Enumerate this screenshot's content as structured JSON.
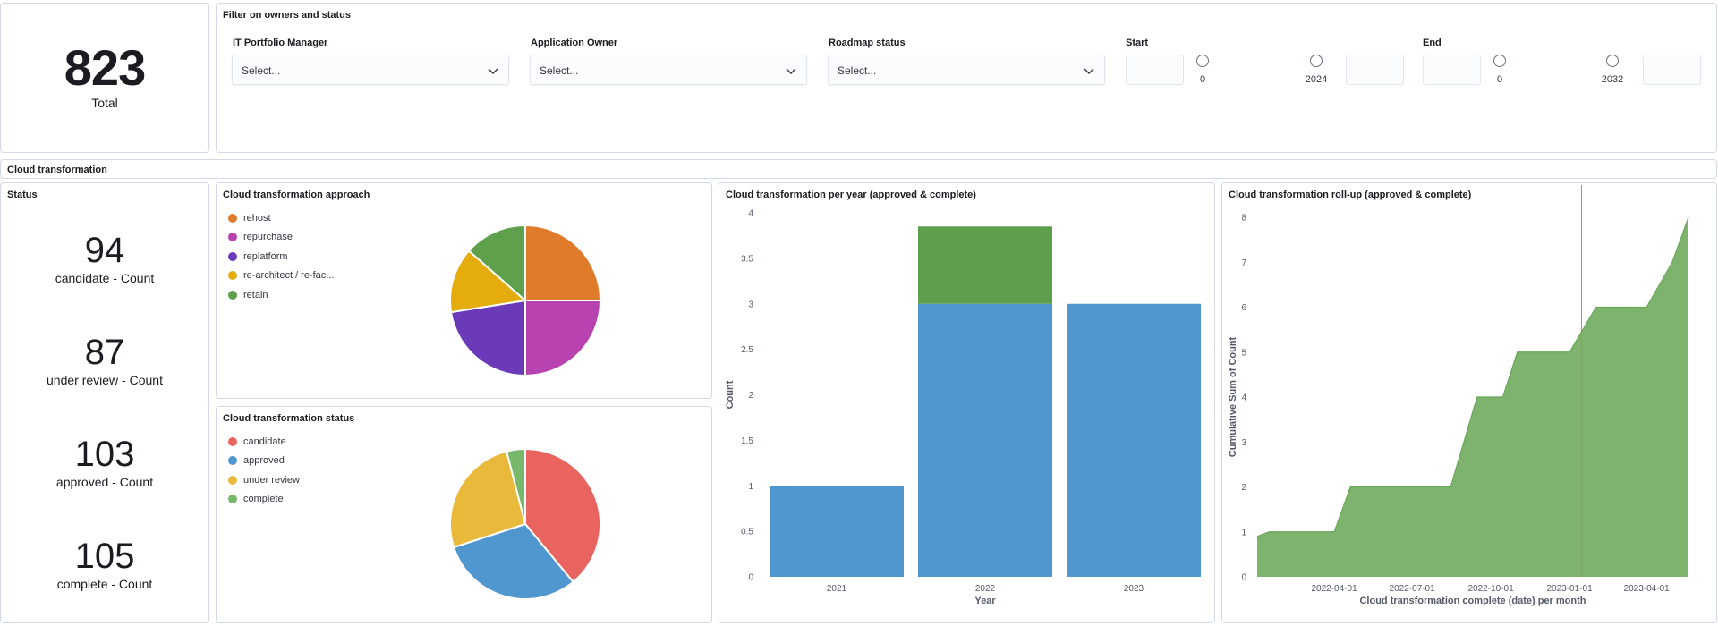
{
  "total": {
    "value": "823",
    "label": "Total"
  },
  "filters": {
    "title": "Filter on owners and status",
    "it_manager": {
      "label": "IT Portfolio Manager",
      "value": "Select..."
    },
    "app_owner": {
      "label": "Application Owner",
      "value": "Select..."
    },
    "roadmap": {
      "label": "Roadmap status",
      "value": "Select..."
    },
    "start": {
      "label": "Start",
      "min": "0",
      "max": "2024"
    },
    "end": {
      "label": "End",
      "min": "0",
      "max": "2032"
    }
  },
  "section": {
    "title": "Cloud transformation"
  },
  "status": {
    "title": "Status",
    "metrics": [
      {
        "value": "94",
        "label": "candidate - Count"
      },
      {
        "value": "87",
        "label": "under review - Count"
      },
      {
        "value": "103",
        "label": "approved - Count"
      },
      {
        "value": "105",
        "label": "complete - Count"
      }
    ]
  },
  "colors": {
    "rehost": "#e07b2c",
    "repurchase": "#b843b0",
    "replatform": "#6a3ab8",
    "rearchitect": "#e5ac0e",
    "retain": "#5ea04b",
    "candidate": "#e9645f",
    "approved": "#5097d0",
    "under_review": "#e8b93a",
    "complete": "#77b86a",
    "bar_blue": "#5097d0",
    "bar_green": "#5e9f4d",
    "area_green": "#7db36c",
    "marker": "#e07b5a"
  },
  "approach": {
    "title": "Cloud transformation approach",
    "legend": [
      {
        "label": "rehost",
        "color": "#e07b2c"
      },
      {
        "label": "repurchase",
        "color": "#b843b0"
      },
      {
        "label": "replatform",
        "color": "#6a3ab8"
      },
      {
        "label": "re-architect / re-fac...",
        "color": "#e5ac0e"
      },
      {
        "label": "retain",
        "color": "#5ea04b"
      }
    ]
  },
  "status_pie": {
    "title": "Cloud transformation status",
    "legend": [
      {
        "label": "candidate",
        "color": "#e9645f"
      },
      {
        "label": "approved",
        "color": "#5097d0"
      },
      {
        "label": "under review",
        "color": "#e8b93a"
      },
      {
        "label": "complete",
        "color": "#77b86a"
      }
    ]
  },
  "per_year_title": "Cloud transformation per year (approved & complete)",
  "rollup_title": "Cloud transformation roll-up (approved & complete)",
  "chart_data": [
    {
      "type": "pie",
      "title": "Cloud transformation approach",
      "labels": [
        "rehost",
        "repurchase",
        "replatform",
        "re-architect / re-fac...",
        "retain"
      ],
      "values": [
        25,
        25,
        22.5,
        14,
        13.5
      ]
    },
    {
      "type": "pie",
      "title": "Cloud transformation status",
      "labels": [
        "candidate",
        "approved",
        "under review",
        "complete"
      ],
      "values": [
        39,
        31,
        26,
        4
      ]
    },
    {
      "type": "bar",
      "stacked": true,
      "title": "Cloud transformation per year (approved & complete)",
      "categories": [
        "2021",
        "2022",
        "2023"
      ],
      "series": [
        {
          "values": [
            1,
            3,
            3
          ],
          "color": "#5097d0"
        },
        {
          "values": [
            0,
            0.85,
            0
          ],
          "color": "#5e9f4d"
        }
      ],
      "xlabel": "Year",
      "ylabel": "Count",
      "ylim": [
        0,
        4
      ],
      "yticks": [
        "0",
        "0.5",
        "1",
        "1.5",
        "2",
        "2.5",
        "3",
        "3.5",
        "4"
      ]
    },
    {
      "type": "area",
      "title": "Cloud transformation roll-up (approved & complete)",
      "x": [
        "2022-01-01",
        "2022-01-15",
        "2022-03-01",
        "2022-04-01",
        "2022-04-20",
        "2022-07-01",
        "2022-08-15",
        "2022-09-15",
        "2022-10-01",
        "2022-10-15",
        "2022-11-01",
        "2022-12-01",
        "2023-01-01",
        "2023-02-01",
        "2023-03-01",
        "2023-04-01",
        "2023-05-01",
        "2023-05-20"
      ],
      "y": [
        0.9,
        1,
        1,
        1,
        2,
        2,
        2,
        4,
        4,
        4,
        5,
        5,
        5,
        6,
        6,
        6,
        7,
        8
      ],
      "xticks": [
        "2022-04-01",
        "2022-07-01",
        "2022-10-01",
        "2023-01-01",
        "2023-04-01"
      ],
      "yticks": [
        "0",
        "1",
        "2",
        "3",
        "4",
        "5",
        "6",
        "7",
        "8"
      ],
      "ylim": [
        0,
        8
      ],
      "marker_x": "2023-01-15",
      "xlabel": "Cloud transformation complete (date) per month",
      "ylabel": "Cumulative Sum of Count"
    }
  ]
}
